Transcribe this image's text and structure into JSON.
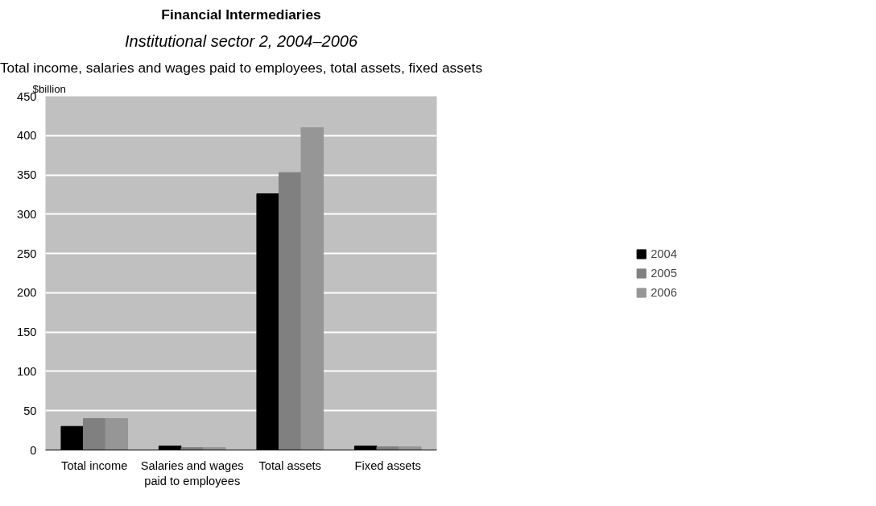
{
  "chart_data": {
    "type": "bar",
    "title": "Financial Intermediaries",
    "subtitle": "Institutional sector 2, 2004–2006",
    "annotations": [
      "Total income, salaries and wages paid to employees, total assets, fixed assets"
    ],
    "ylabel": "$billion",
    "categories": [
      "Total income",
      "Salaries and wages\npaid to employees",
      "Total assets",
      "Fixed assets"
    ],
    "series": [
      {
        "name": "2004",
        "color": "#000000",
        "values": [
          30,
          5,
          326,
          5
        ]
      },
      {
        "name": "2005",
        "color": "#808080",
        "values": [
          40,
          3,
          353,
          4
        ]
      },
      {
        "name": "2006",
        "color": "#969696",
        "values": [
          40,
          3,
          410,
          4
        ]
      }
    ],
    "ylim": [
      0,
      450
    ],
    "yticks": [
      0,
      50,
      100,
      150,
      200,
      250,
      300,
      350,
      400,
      450
    ],
    "grid": "y",
    "legend": "right"
  }
}
